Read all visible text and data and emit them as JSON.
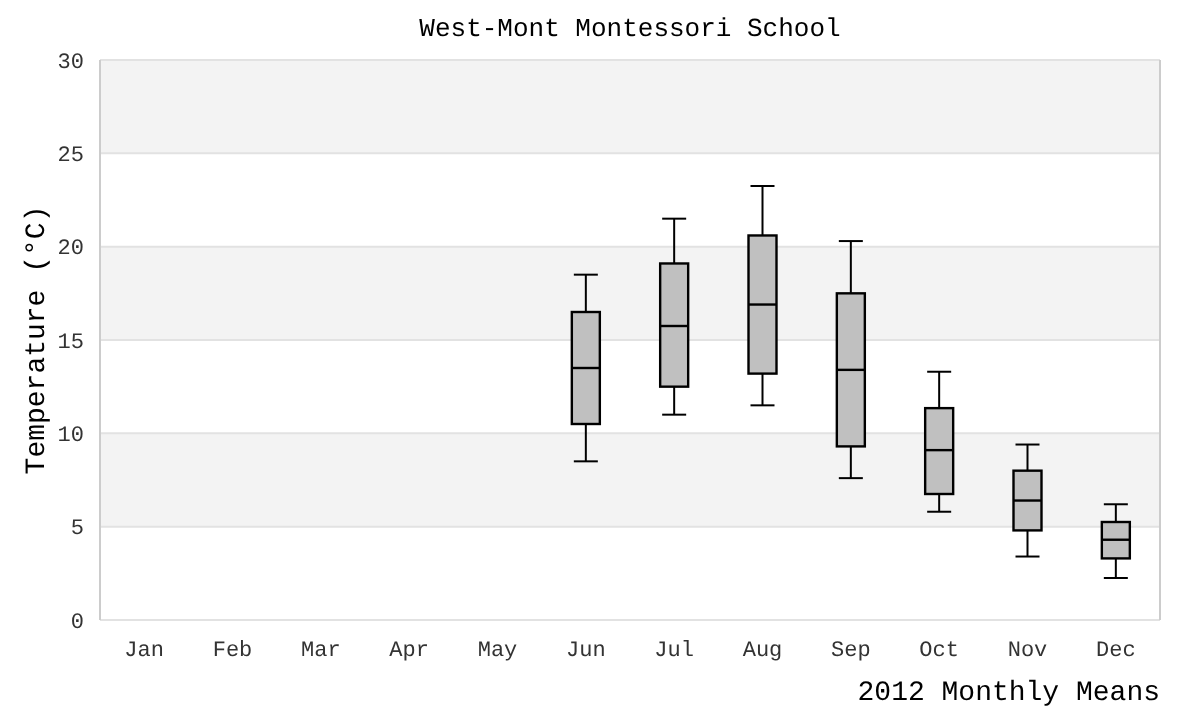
{
  "chart_data": {
    "type": "box",
    "title": "West-Mont Montessori School",
    "xlabel": "2012 Monthly Means",
    "ylabel": "Temperature (°C)",
    "categories": [
      "Jan",
      "Feb",
      "Mar",
      "Apr",
      "May",
      "Jun",
      "Jul",
      "Aug",
      "Sep",
      "Oct",
      "Nov",
      "Dec"
    ],
    "boxes": [
      null,
      null,
      null,
      null,
      null,
      {
        "low": 8.5,
        "q1": 10.5,
        "median": 13.5,
        "q3": 16.5,
        "high": 18.5
      },
      {
        "low": 11,
        "q1": 12.5,
        "median": 15.75,
        "q3": 19.1,
        "high": 21.5
      },
      {
        "low": 11.5,
        "q1": 13.2,
        "median": 16.9,
        "q3": 20.6,
        "high": 23.25
      },
      {
        "low": 7.6,
        "q1": 9.3,
        "median": 13.4,
        "q3": 17.5,
        "high": 20.3
      },
      {
        "low": 5.8,
        "q1": 6.75,
        "median": 9.1,
        "q3": 11.35,
        "high": 13.3
      },
      {
        "low": 3.4,
        "q1": 4.8,
        "median": 6.4,
        "q3": 8,
        "high": 9.4
      },
      {
        "low": 2.25,
        "q1": 3.3,
        "median": 4.3,
        "q3": 5.25,
        "high": 6.2
      }
    ],
    "color": "#c0c0c0",
    "ylim": [
      0,
      30
    ],
    "yticks": [
      0,
      5,
      10,
      15,
      20,
      25,
      30
    ],
    "grid": "y"
  }
}
